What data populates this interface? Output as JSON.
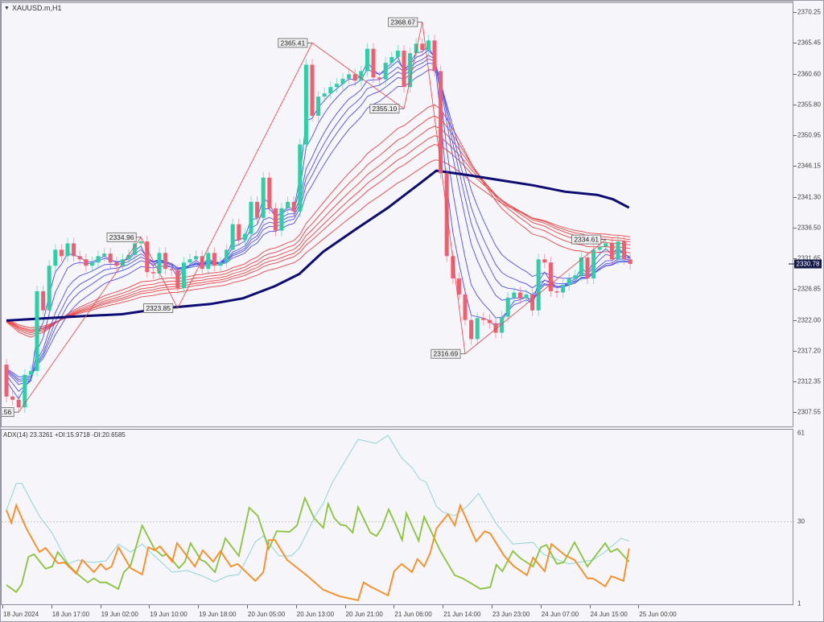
{
  "window": {
    "title": "XAUUSD.m,H1",
    "menu_icon": "triangle-down-icon"
  },
  "colors": {
    "background": "#f5f5fa",
    "bull_candle": "#2cd0a6",
    "bear_candle": "#f25e6f",
    "short_ema": "#5050ee",
    "long_ema": "#ee4444",
    "slow_ma": "#0c0c72",
    "zigzag": "#f04040",
    "adx": "#8ed6d6",
    "plus_di": "#8ac43a",
    "minus_di": "#ff8a1c",
    "price_tag": "#141a48"
  },
  "price_axis": {
    "ticks": [
      "2370.25",
      "2365.45",
      "2360.60",
      "2355.80",
      "2350.95",
      "2346.15",
      "2341.30",
      "2336.50",
      "2331.65",
      "2326.85",
      "2322.00",
      "2317.20",
      "2312.35",
      "2307.55"
    ],
    "current_price": "2330.78"
  },
  "time_axis": {
    "labels": [
      "18 Jun 2024",
      "18 Jun 17:00",
      "19 Jun 02:00",
      "19 Jun 10:00",
      "19 Jun 18:00",
      "20 Jun 05:00",
      "20 Jun 13:00",
      "20 Jun 21:00",
      "21 Jun 06:00",
      "21 Jun 14:00",
      "23 Jun 23:00",
      "24 Jun 07:00",
      "24 Jun 15:00",
      "25 Jun 00:00"
    ],
    "bars_per_label": 8
  },
  "chart_data": [
    {
      "type": "candlestick",
      "symbol": "XAUUSD.m",
      "timeframe": "H1",
      "ylim": [
        2307.55,
        2370.25
      ],
      "first_open": 2315.0,
      "closes": [
        2310,
        2309.5,
        2308.3,
        2313.4,
        2314,
        2326.5,
        2323.5,
        2330.5,
        2333,
        2332,
        2334,
        2332,
        2331.5,
        2330.5,
        2331,
        2332,
        2332.4,
        2331,
        2330.5,
        2331.5,
        2332.2,
        2334,
        2334.3,
        2329.5,
        2329.3,
        2332.5,
        2330,
        2329.8,
        2327,
        2331,
        2331.5,
        2332,
        2330,
        2332.5,
        2330.5,
        2331,
        2333,
        2337,
        2334.5,
        2335.5,
        2340.5,
        2338,
        2344.3,
        2339.5,
        2336,
        2339.5,
        2340.5,
        2339,
        2349.5,
        2362,
        2354,
        2357,
        2357.5,
        2358.5,
        2359,
        2359.8,
        2360.5,
        2359.5,
        2361,
        2364.5,
        2360,
        2359.7,
        2362.3,
        2363.2,
        2364.2,
        2358.5,
        2363.8,
        2365.3,
        2364.3,
        2365.8,
        2361,
        2345,
        2332,
        2328.5,
        2326,
        2322,
        2319,
        2322.3,
        2322,
        2321.5,
        2320,
        2322.5,
        2325.5,
        2326.3,
        2325.4,
        2326,
        2323.5,
        2331.5,
        2331,
        2326.5,
        2326.3,
        2327.5,
        2328.5,
        2329,
        2331.8,
        2328.5,
        2333,
        2333.5,
        2334,
        2331.5,
        2334.3,
        2331.5,
        2330.78
      ],
      "slow_ma": [
        [
          0,
          2321.9
        ],
        [
          12.4,
          2322.6
        ],
        [
          18.9,
          2322.9
        ],
        [
          25.5,
          2323.8
        ],
        [
          33.4,
          2324.5
        ],
        [
          38.7,
          2325.4
        ],
        [
          43.9,
          2327.3
        ],
        [
          47.9,
          2329.2
        ],
        [
          51.8,
          2332.7
        ],
        [
          57.1,
          2336.2
        ],
        [
          62.4,
          2339.6
        ],
        [
          67.6,
          2343.4
        ],
        [
          70.3,
          2345.4
        ],
        [
          75.5,
          2344.7
        ],
        [
          80.8,
          2343.9
        ],
        [
          86.1,
          2343.1
        ],
        [
          91.3,
          2342.1
        ],
        [
          96.6,
          2341.6
        ],
        [
          99.2,
          2340.9
        ],
        [
          101.8,
          2339.6
        ]
      ],
      "zigzag": [
        {
          "bar": 2,
          "price": 2307.56,
          "label": ".56"
        },
        {
          "bar": 22,
          "price": 2334.96,
          "label": "2334.96"
        },
        {
          "bar": 28,
          "price": 2323.85,
          "label": "2323.85"
        },
        {
          "bar": 50,
          "price": 2365.41,
          "label": "2365.41"
        },
        {
          "bar": 65,
          "price": 2355.1,
          "label": "2355.10"
        },
        {
          "bar": 68,
          "price": 2368.67,
          "label": "2368.67"
        },
        {
          "bar": 75,
          "price": 2316.69,
          "label": "2316.69"
        },
        {
          "bar": 98,
          "price": 2334.61,
          "label": "2334.61"
        }
      ]
    },
    {
      "type": "line",
      "title": "ADX(14) 23.3261 +DI:15.9718 -DI:20.6585",
      "ylim": [
        1,
        61
      ],
      "ticks": [
        "61",
        "30",
        "1"
      ],
      "level": 30,
      "series": [
        {
          "name": "ADX(14)",
          "points": [
            [
              0,
              34.1
            ],
            [
              1.6,
              43.5
            ],
            [
              2.5,
              43.5
            ],
            [
              5.4,
              32
            ],
            [
              7.5,
              26
            ],
            [
              10.1,
              15.2
            ],
            [
              11.7,
              16.6
            ],
            [
              13,
              16
            ],
            [
              14.3,
              15.7
            ],
            [
              16.3,
              16.3
            ],
            [
              18.3,
              22.2
            ],
            [
              20.3,
              19.4
            ],
            [
              22.2,
              22.2
            ],
            [
              24.2,
              18
            ],
            [
              27.1,
              12.3
            ],
            [
              29.5,
              12.9
            ],
            [
              32.1,
              10.9
            ],
            [
              34.1,
              8.9
            ],
            [
              36.1,
              10.9
            ],
            [
              38,
              11.5
            ],
            [
              40.7,
              23
            ],
            [
              42,
              25
            ],
            [
              44.6,
              18
            ],
            [
              46.6,
              18
            ],
            [
              47.9,
              20.8
            ],
            [
              50.5,
              32.1
            ],
            [
              51.8,
              36.4
            ],
            [
              53.2,
              43.5
            ],
            [
              57.5,
              59
            ],
            [
              60.4,
              57.6
            ],
            [
              62.4,
              60.4
            ],
            [
              64.6,
              52.5
            ],
            [
              66.3,
              49.1
            ],
            [
              67.6,
              44.9
            ],
            [
              68.6,
              44
            ],
            [
              70.3,
              35.5
            ],
            [
              71.3,
              33.5
            ],
            [
              73.3,
              32.1
            ],
            [
              75.5,
              35.8
            ],
            [
              77.2,
              40
            ],
            [
              80.1,
              29.3
            ],
            [
              82.8,
              22.2
            ],
            [
              86.1,
              22.8
            ],
            [
              87.8,
              18.6
            ],
            [
              92,
              15.2
            ],
            [
              95.9,
              16.6
            ],
            [
              97.9,
              19.4
            ],
            [
              100.5,
              24.2
            ],
            [
              101.8,
              23.33
            ]
          ]
        },
        {
          "name": "+DI",
          "points": [
            [
              0,
              7.8
            ],
            [
              1.6,
              5.3
            ],
            [
              2.5,
              8.1
            ],
            [
              3.6,
              17.7
            ],
            [
              4.5,
              18.6
            ],
            [
              6.4,
              13.5
            ],
            [
              7.5,
              14.3
            ],
            [
              8.4,
              19.4
            ],
            [
              10.1,
              14.9
            ],
            [
              11.7,
              11.5
            ],
            [
              13.3,
              8.7
            ],
            [
              14.3,
              10.1
            ],
            [
              15.3,
              8.7
            ],
            [
              16.3,
              8.7
            ],
            [
              18.3,
              6.4
            ],
            [
              19.2,
              12.3
            ],
            [
              20.3,
              14.6
            ],
            [
              22.2,
              28.7
            ],
            [
              24.2,
              20.5
            ],
            [
              25.5,
              18
            ],
            [
              26.2,
              18.6
            ],
            [
              27.1,
              16.6
            ],
            [
              28.2,
              13.7
            ],
            [
              29.2,
              16
            ],
            [
              30.1,
              22.5
            ],
            [
              31.8,
              16.6
            ],
            [
              32.5,
              16
            ],
            [
              34.1,
              12.3
            ],
            [
              35.8,
              24.2
            ],
            [
              38,
              18
            ],
            [
              39.7,
              35
            ],
            [
              41.1,
              32.1
            ],
            [
              42.9,
              20.5
            ],
            [
              44.2,
              26.7
            ],
            [
              46.3,
              26.5
            ],
            [
              47.5,
              28.7
            ],
            [
              48.8,
              38.4
            ],
            [
              50.3,
              31.3
            ],
            [
              51.8,
              27.9
            ],
            [
              52.6,
              36.4
            ],
            [
              53.6,
              31.3
            ],
            [
              54.6,
              29
            ],
            [
              55.5,
              28.7
            ],
            [
              56.6,
              26.2
            ],
            [
              57.5,
              35.2
            ],
            [
              59.5,
              26.2
            ],
            [
              60.5,
              25
            ],
            [
              61.4,
              27.9
            ],
            [
              62.5,
              34.4
            ],
            [
              63.7,
              28.7
            ],
            [
              64.7,
              23.6
            ],
            [
              65.4,
              33
            ],
            [
              67.4,
              23.3
            ],
            [
              68.3,
              31.8
            ],
            [
              69.6,
              25.9
            ],
            [
              70.9,
              20
            ],
            [
              73.3,
              11.2
            ],
            [
              74.6,
              10.1
            ],
            [
              76.2,
              8.1
            ],
            [
              77.5,
              6.4
            ],
            [
              79.1,
              7
            ],
            [
              80.1,
              14.9
            ],
            [
              81.1,
              12.6
            ],
            [
              82.8,
              19.7
            ],
            [
              84.1,
              17.1
            ],
            [
              86.1,
              14.3
            ],
            [
              87.4,
              21.1
            ],
            [
              88.3,
              21.9
            ],
            [
              90,
              15.2
            ],
            [
              91.1,
              15.7
            ],
            [
              92.9,
              22.8
            ],
            [
              95,
              14.3
            ],
            [
              97.9,
              22.5
            ],
            [
              98.8,
              19.4
            ],
            [
              99.9,
              20.5
            ],
            [
              101.8,
              15.97
            ]
          ]
        },
        {
          "name": "-DI",
          "points": [
            [
              0,
              34.1
            ],
            [
              0.8,
              29.6
            ],
            [
              1.6,
              35.8
            ],
            [
              3.2,
              27.9
            ],
            [
              5.4,
              19.4
            ],
            [
              6.4,
              20.8
            ],
            [
              8.4,
              15.4
            ],
            [
              9.5,
              15.7
            ],
            [
              11.4,
              11.8
            ],
            [
              12.4,
              16.6
            ],
            [
              14.3,
              12.3
            ],
            [
              15.4,
              15.2
            ],
            [
              16.3,
              13.2
            ],
            [
              17.2,
              14.3
            ],
            [
              18.3,
              21.1
            ],
            [
              20.3,
              13.7
            ],
            [
              22.2,
              11.5
            ],
            [
              23.2,
              21.1
            ],
            [
              24.2,
              20
            ],
            [
              25.1,
              21.4
            ],
            [
              27.1,
              16
            ],
            [
              27.9,
              22.5
            ],
            [
              30.8,
              14.3
            ],
            [
              32.1,
              20
            ],
            [
              33.8,
              16
            ],
            [
              35,
              19.7
            ],
            [
              36.7,
              14.3
            ],
            [
              37.8,
              15.2
            ],
            [
              40.7,
              9.2
            ],
            [
              42,
              12.3
            ],
            [
              42.9,
              23.6
            ],
            [
              43.9,
              23.6
            ],
            [
              45.9,
              16.6
            ],
            [
              49.2,
              11
            ],
            [
              51.8,
              6.1
            ],
            [
              54.5,
              3.8
            ],
            [
              57.5,
              2.4
            ],
            [
              58.4,
              8.7
            ],
            [
              59.7,
              7
            ],
            [
              62.4,
              4.1
            ],
            [
              63.4,
              12.6
            ],
            [
              64.6,
              15.2
            ],
            [
              66.3,
              12.3
            ],
            [
              67.2,
              16.9
            ],
            [
              68.3,
              14.3
            ],
            [
              69.3,
              19.1
            ],
            [
              70.3,
              27.6
            ],
            [
              72.2,
              32.7
            ],
            [
              73.3,
              28.7
            ],
            [
              74.2,
              35.8
            ],
            [
              76.8,
              23.1
            ],
            [
              78.2,
              26.7
            ],
            [
              79.1,
              25.9
            ],
            [
              81.4,
              18
            ],
            [
              83,
              14.3
            ],
            [
              85.1,
              11.2
            ],
            [
              86.1,
              17.4
            ],
            [
              88,
              12.6
            ],
            [
              89.1,
              22.2
            ],
            [
              91.3,
              18.3
            ],
            [
              92.9,
              16.6
            ],
            [
              95,
              10.1
            ],
            [
              95.9,
              10.1
            ],
            [
              97.9,
              7.3
            ],
            [
              98.9,
              10.9
            ],
            [
              100.9,
              9.2
            ],
            [
              101.8,
              20.66
            ]
          ]
        }
      ]
    }
  ]
}
